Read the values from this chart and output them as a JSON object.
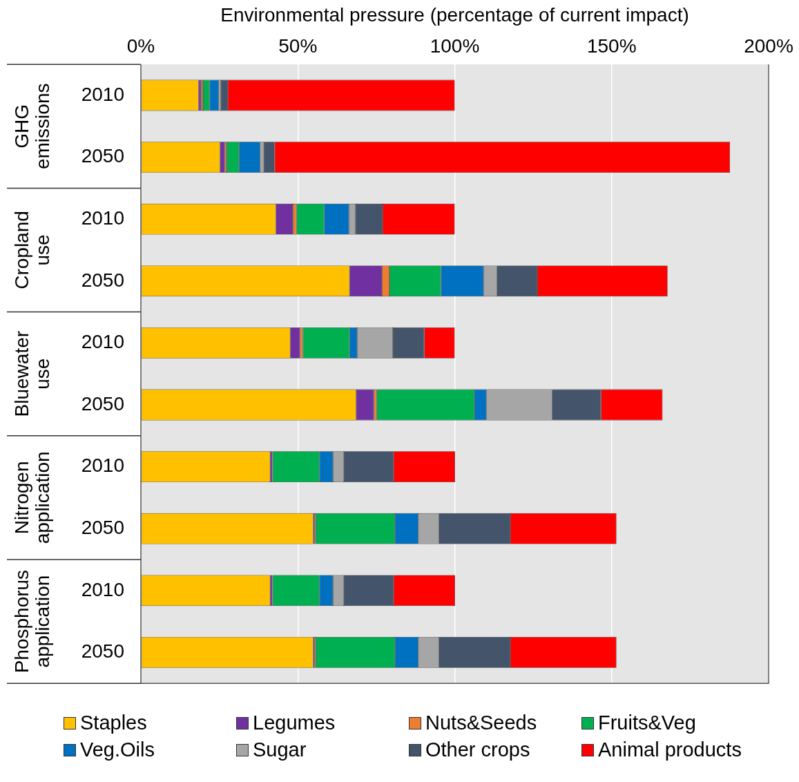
{
  "chart_data": {
    "type": "bar",
    "orientation": "horizontal",
    "stacked": true,
    "xlabel": "Environmental pressure (percentage of current impact)",
    "categories": [
      "2010",
      "2050",
      "2010",
      "2050",
      "2010",
      "2050",
      "2010",
      "2050",
      "2010",
      "2050"
    ],
    "annotations": [
      "GHG emissions",
      "Cropland use",
      "Bluewater use",
      "Nitrogen application",
      "Phosphorus application"
    ],
    "xlim": [
      0,
      200
    ],
    "xticks": [
      {
        "value": 0,
        "label": "0%"
      },
      {
        "value": 50,
        "label": "50%"
      },
      {
        "value": 100,
        "label": "100%"
      },
      {
        "value": 150,
        "label": "150%"
      },
      {
        "value": 200,
        "label": "200%"
      }
    ],
    "grid": "x",
    "legend": "bottom",
    "series": [
      {
        "name": "Staples",
        "color": "#ffc000",
        "values": [
          18.4,
          25.2,
          43.0,
          66.5,
          47.6,
          68.6,
          41.2,
          54.9,
          41.2,
          54.9
        ]
      },
      {
        "name": "Legumes",
        "color": "#7030a0",
        "values": [
          0.8,
          1.5,
          5.4,
          10.3,
          3.1,
          5.6,
          0.7,
          0.4,
          0.7,
          0.4
        ]
      },
      {
        "name": "Nuts&Seeds",
        "color": "#ed7d31",
        "values": [
          0.6,
          0.6,
          1.2,
          2.4,
          0.9,
          0.9,
          0.1,
          0.4,
          0.1,
          0.4
        ]
      },
      {
        "name": "Fruits&Veg",
        "color": "#00b050",
        "values": [
          2.1,
          4.0,
          8.8,
          16.4,
          14.9,
          31.2,
          14.9,
          25.3,
          14.9,
          25.3
        ]
      },
      {
        "name": "Veg.Oils",
        "color": "#0070c0",
        "values": [
          2.9,
          6.7,
          7.9,
          13.6,
          2.4,
          3.8,
          4.3,
          7.4,
          4.3,
          7.4
        ]
      },
      {
        "name": "Sugar",
        "color": "#a6a6a6",
        "values": [
          0.7,
          1.2,
          2.1,
          4.2,
          11.4,
          20.9,
          3.5,
          6.5,
          3.5,
          6.5
        ]
      },
      {
        "name": "Other crops",
        "color": "#44546a",
        "values": [
          2.2,
          3.4,
          8.6,
          12.9,
          10.0,
          15.6,
          15.8,
          22.8,
          15.8,
          22.8
        ]
      },
      {
        "name": "Animal products",
        "color": "#ff0000",
        "values": [
          72.3,
          145.1,
          23.0,
          41.5,
          9.7,
          19.6,
          19.6,
          33.8,
          19.6,
          33.8
        ]
      }
    ]
  }
}
